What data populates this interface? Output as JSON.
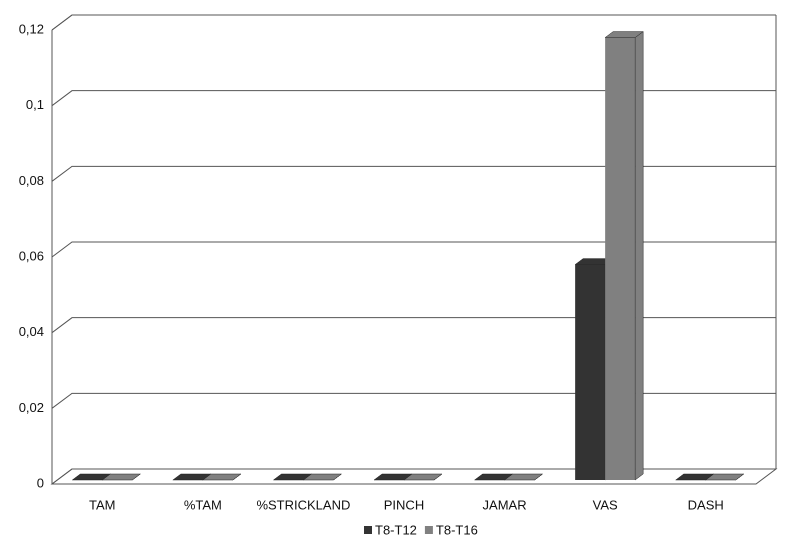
{
  "chart_data": {
    "type": "bar3d",
    "categories": [
      "TAM",
      "%TAM",
      "%STRICKLAND",
      "PINCH",
      "JAMAR",
      "VAS",
      "DASH"
    ],
    "series": [
      {
        "name": "T8-T12",
        "color": "#333333",
        "values": [
          0,
          0,
          0,
          0,
          0,
          0.058,
          0
        ]
      },
      {
        "name": "T8-T16",
        "color": "#808080",
        "values": [
          0,
          0,
          0,
          0,
          0,
          0.118,
          0
        ]
      }
    ],
    "ylim": [
      0,
      0.12
    ],
    "yticks": [
      0,
      {
        "value": 0.02,
        "label": "0,02"
      },
      {
        "value": 0.04,
        "label": "0,04"
      },
      {
        "value": 0.06,
        "label": "0,06"
      },
      {
        "value": 0.08,
        "label": "0,08"
      },
      {
        "value": 0.1,
        "label": "0,1"
      },
      {
        "value": 0.12,
        "label": "0,12"
      }
    ],
    "grid": true,
    "legend": "bottom"
  }
}
